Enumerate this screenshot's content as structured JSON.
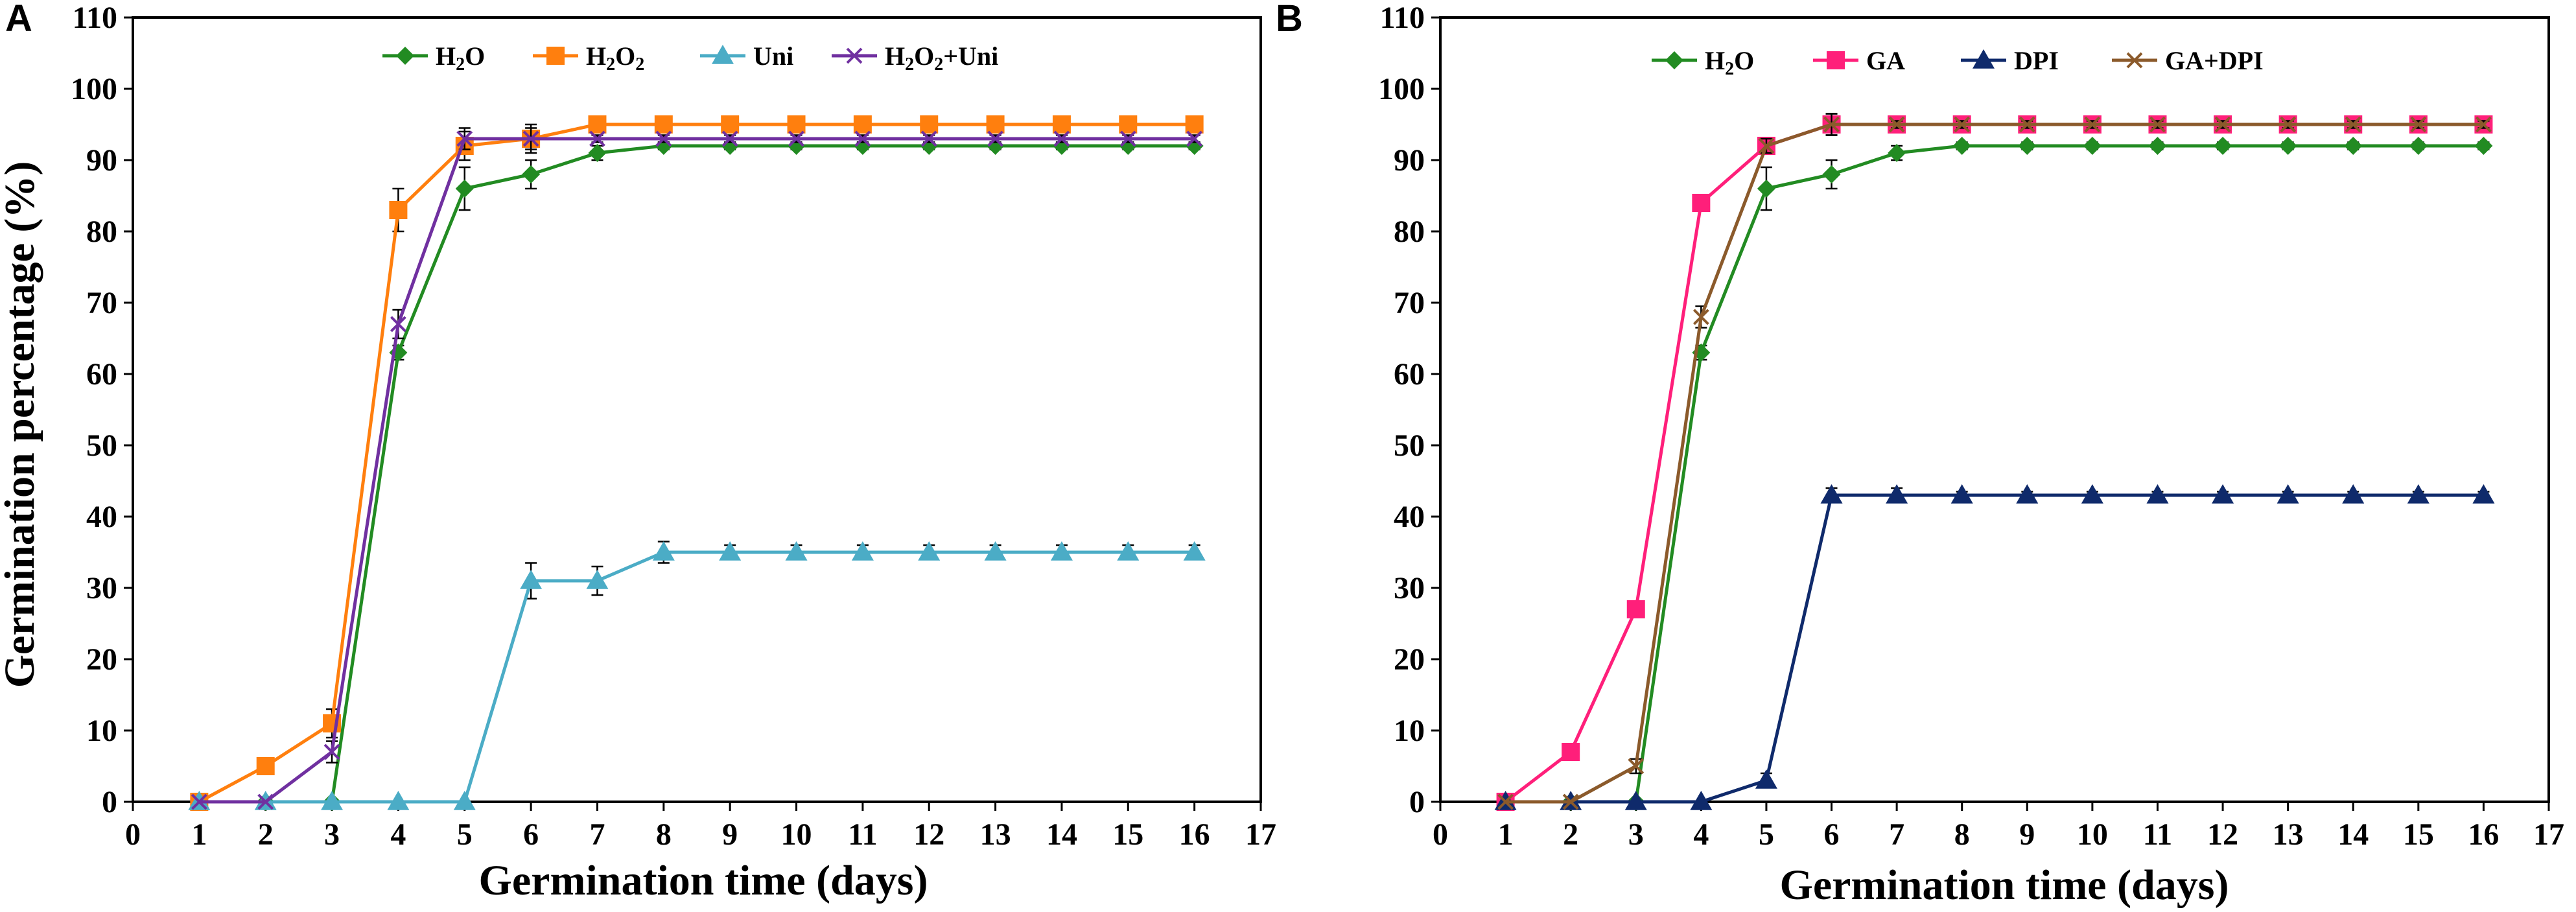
{
  "chart_data": [
    {
      "type": "line",
      "panel": "A",
      "title": "",
      "xlabel": "Germination time (days)",
      "ylabel": "Germination percentage (%)",
      "xlim": [
        0,
        17
      ],
      "ylim": [
        0,
        110
      ],
      "xticks": [
        0,
        1,
        2,
        3,
        4,
        5,
        6,
        7,
        8,
        9,
        10,
        11,
        12,
        13,
        14,
        15,
        16,
        17
      ],
      "yticks": [
        0,
        10,
        20,
        30,
        40,
        50,
        60,
        70,
        80,
        90,
        100,
        110
      ],
      "grid": false,
      "legend_position": "top",
      "x": [
        1,
        2,
        3,
        4,
        5,
        6,
        7,
        8,
        9,
        10,
        11,
        12,
        13,
        14,
        15,
        16
      ],
      "series": [
        {
          "name": "H2O",
          "legend_parts": [
            [
              "H",
              ""
            ],
            [
              "2",
              "sub"
            ],
            [
              "O",
              ""
            ]
          ],
          "color": "#228B22",
          "marker": "diamond",
          "values": [
            0,
            0,
            0,
            63,
            86,
            88,
            91,
            92,
            92,
            92,
            92,
            92,
            92,
            92,
            92,
            92
          ],
          "errors": [
            0,
            0,
            0,
            1,
            3,
            2,
            1,
            0.5,
            0.5,
            0.5,
            0.5,
            0.5,
            0.5,
            0.5,
            0.5,
            0.5
          ]
        },
        {
          "name": "H2O2",
          "legend_parts": [
            [
              "H",
              ""
            ],
            [
              "2",
              "sub"
            ],
            [
              "O",
              ""
            ],
            [
              "2",
              "sub"
            ]
          ],
          "color": "#FF7F0E",
          "marker": "square",
          "values": [
            0,
            5,
            11,
            83,
            92,
            93,
            95,
            95,
            95,
            95,
            95,
            95,
            95,
            95,
            95,
            95
          ],
          "errors": [
            0,
            0,
            2,
            3,
            2,
            2,
            0.5,
            0.5,
            0.5,
            0.5,
            0.5,
            0.5,
            0.5,
            0.5,
            0.5,
            0.5
          ]
        },
        {
          "name": "Uni",
          "legend_parts": [
            [
              "Uni",
              ""
            ]
          ],
          "color": "#4BACC6",
          "marker": "triangle",
          "values": [
            0,
            0,
            0,
            0,
            0,
            31,
            31,
            35,
            35,
            35,
            35,
            35,
            35,
            35,
            35,
            35
          ],
          "errors": [
            0,
            0,
            0,
            0,
            0,
            2.5,
            2,
            1.5,
            1,
            1,
            1,
            1,
            1,
            1,
            1,
            1
          ]
        },
        {
          "name": "H2O2+Uni",
          "legend_parts": [
            [
              "H",
              ""
            ],
            [
              "2",
              "sub"
            ],
            [
              "O",
              ""
            ],
            [
              "2",
              "sub"
            ],
            [
              "+Uni",
              ""
            ]
          ],
          "color": "#7030A0",
          "marker": "x",
          "values": [
            0,
            0,
            7,
            67,
            93,
            93,
            93,
            93,
            93,
            93,
            93,
            93,
            93,
            93,
            93,
            93
          ],
          "errors": [
            0,
            0,
            1.5,
            2,
            1.5,
            1.5,
            0.5,
            0.5,
            0.5,
            0.5,
            0.5,
            0.5,
            0.5,
            0.5,
            0.5,
            0.5
          ]
        }
      ]
    },
    {
      "type": "line",
      "panel": "B",
      "title": "",
      "xlabel": "Germination time (days)",
      "ylabel": "",
      "xlim": [
        0,
        17
      ],
      "ylim": [
        0,
        110
      ],
      "xticks": [
        0,
        1,
        2,
        3,
        4,
        5,
        6,
        7,
        8,
        9,
        10,
        11,
        12,
        13,
        14,
        15,
        16,
        17
      ],
      "yticks": [
        0,
        10,
        20,
        30,
        40,
        50,
        60,
        70,
        80,
        90,
        100,
        110
      ],
      "grid": false,
      "legend_position": "top",
      "x": [
        1,
        2,
        3,
        4,
        5,
        6,
        7,
        8,
        9,
        10,
        11,
        12,
        13,
        14,
        15,
        16
      ],
      "series": [
        {
          "name": "H2O",
          "legend_parts": [
            [
              "H",
              ""
            ],
            [
              "2",
              "sub"
            ],
            [
              "O",
              ""
            ]
          ],
          "color": "#228B22",
          "marker": "diamond",
          "values": [
            0,
            0,
            0,
            63,
            86,
            88,
            91,
            92,
            92,
            92,
            92,
            92,
            92,
            92,
            92,
            92
          ],
          "errors": [
            0,
            0,
            0,
            1,
            3,
            2,
            1,
            0.5,
            0.5,
            0.5,
            0.5,
            0.5,
            0.5,
            0.5,
            0.5,
            0.5
          ]
        },
        {
          "name": "GA",
          "legend_parts": [
            [
              "GA",
              ""
            ]
          ],
          "color": "#FF1F7A",
          "marker": "square",
          "values": [
            0,
            7,
            27,
            84,
            92,
            95,
            95,
            95,
            95,
            95,
            95,
            95,
            95,
            95,
            95,
            95
          ],
          "errors": [
            0,
            0,
            0,
            1,
            1,
            1.5,
            0.5,
            0.5,
            0.5,
            0.5,
            0.5,
            0.5,
            0.5,
            0.5,
            0.5,
            0.5
          ]
        },
        {
          "name": "DPI",
          "legend_parts": [
            [
              "DPI",
              ""
            ]
          ],
          "color": "#0F2A6B",
          "marker": "triangle",
          "values": [
            0,
            0,
            0,
            0,
            3,
            43,
            43,
            43,
            43,
            43,
            43,
            43,
            43,
            43,
            43,
            43
          ],
          "errors": [
            0,
            0,
            0,
            0,
            1,
            1,
            1,
            0.5,
            0.5,
            0.5,
            0.5,
            0.5,
            0.5,
            0.5,
            0.5,
            0.5
          ]
        },
        {
          "name": "GA+DPI",
          "legend_parts": [
            [
              "GA+DPI",
              ""
            ]
          ],
          "color": "#8B5A2B",
          "marker": "x",
          "values": [
            0,
            0,
            5,
            68,
            92,
            95,
            95,
            95,
            95,
            95,
            95,
            95,
            95,
            95,
            95,
            95
          ],
          "errors": [
            0,
            0,
            1,
            1.5,
            1,
            1.5,
            0.5,
            0.5,
            0.5,
            0.5,
            0.5,
            0.5,
            0.5,
            0.5,
            0.5,
            0.5
          ]
        }
      ]
    }
  ]
}
